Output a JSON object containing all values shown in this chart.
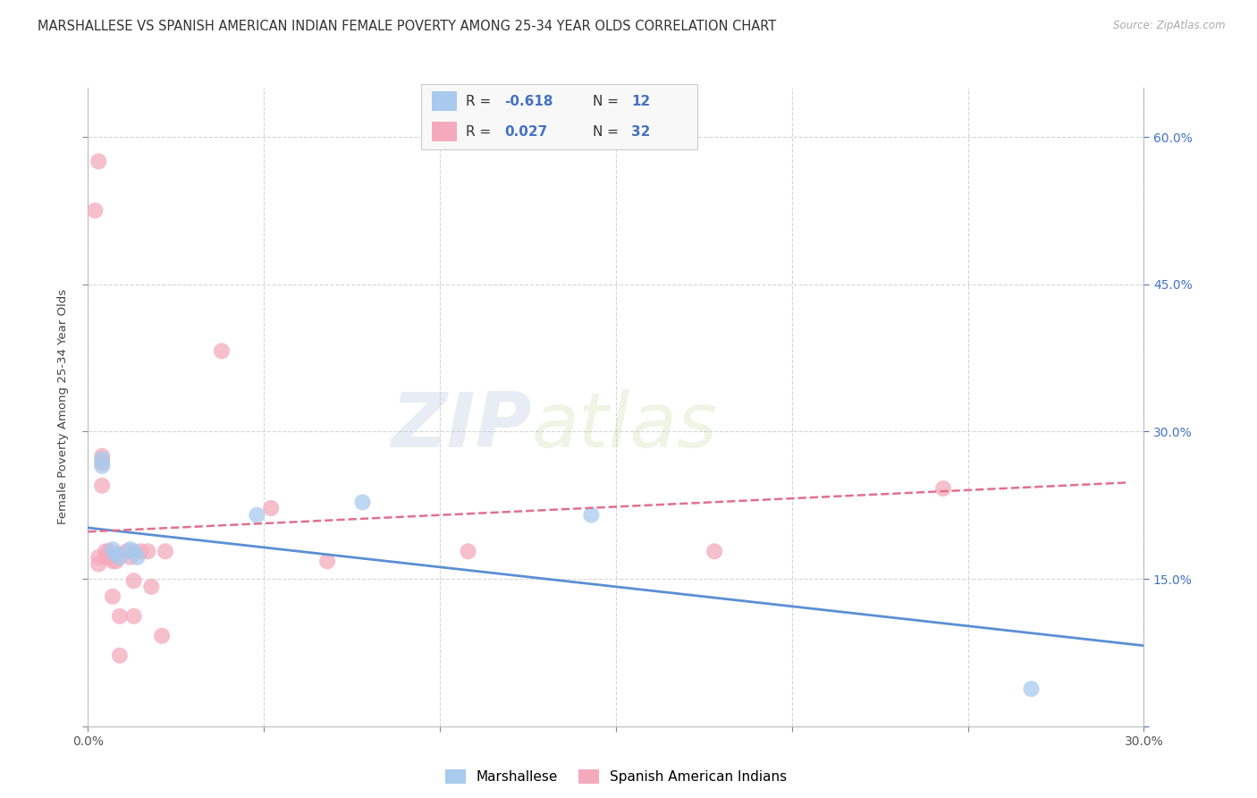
{
  "title": "MARSHALLESE VS SPANISH AMERICAN INDIAN FEMALE POVERTY AMONG 25-34 YEAR OLDS CORRELATION CHART",
  "source": "Source: ZipAtlas.com",
  "ylabel": "Female Poverty Among 25-34 Year Olds",
  "xlim": [
    0.0,
    0.3
  ],
  "ylim": [
    0.0,
    0.65
  ],
  "xticks": [
    0.0,
    0.05,
    0.1,
    0.15,
    0.2,
    0.25,
    0.3
  ],
  "xticklabels": [
    "0.0%",
    "",
    "",
    "",
    "",
    "",
    "30.0%"
  ],
  "yticks": [
    0.0,
    0.15,
    0.3,
    0.45,
    0.6
  ],
  "yticklabels_right": [
    "",
    "15.0%",
    "30.0%",
    "45.0%",
    "60.0%"
  ],
  "watermark_zip": "ZIP",
  "watermark_atlas": "atlas",
  "blue_color": "#A8CAEE",
  "pink_color": "#F4AABC",
  "blue_line_color": "#5B8FD4",
  "pink_line_color": "#E07090",
  "legend_label_blue": "Marshallese",
  "legend_label_pink": "Spanish American Indians",
  "marshallese_x": [
    0.004,
    0.004,
    0.007,
    0.008,
    0.009,
    0.012,
    0.013,
    0.014,
    0.048,
    0.078,
    0.143,
    0.268
  ],
  "marshallese_y": [
    0.272,
    0.265,
    0.18,
    0.175,
    0.172,
    0.18,
    0.178,
    0.172,
    0.215,
    0.228,
    0.215,
    0.038
  ],
  "spanish_x": [
    0.002,
    0.003,
    0.003,
    0.003,
    0.004,
    0.004,
    0.004,
    0.005,
    0.005,
    0.006,
    0.006,
    0.007,
    0.007,
    0.008,
    0.009,
    0.009,
    0.009,
    0.011,
    0.012,
    0.013,
    0.013,
    0.015,
    0.017,
    0.018,
    0.021,
    0.022,
    0.038,
    0.052,
    0.068,
    0.108,
    0.178,
    0.243
  ],
  "spanish_y": [
    0.525,
    0.575,
    0.165,
    0.172,
    0.275,
    0.268,
    0.245,
    0.178,
    0.172,
    0.178,
    0.172,
    0.168,
    0.132,
    0.168,
    0.112,
    0.072,
    0.175,
    0.178,
    0.172,
    0.148,
    0.112,
    0.178,
    0.178,
    0.142,
    0.092,
    0.178,
    0.382,
    0.222,
    0.168,
    0.178,
    0.178,
    0.242
  ],
  "blue_trend_x": [
    0.0,
    0.3
  ],
  "blue_trend_y": [
    0.202,
    0.082
  ],
  "pink_trend_x": [
    0.0,
    0.295
  ],
  "pink_trend_y": [
    0.198,
    0.248
  ],
  "grid_color": "#D5D5D5",
  "title_fontsize": 10.5,
  "axis_label_fontsize": 9.5,
  "tick_fontsize": 10,
  "legend_fontsize": 11
}
